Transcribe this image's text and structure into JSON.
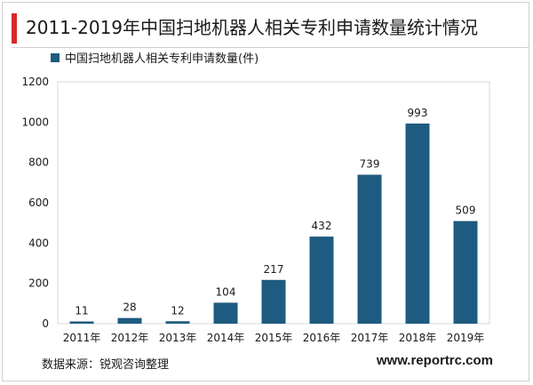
{
  "header": {
    "title": "2011-2019年中国扫地机器人相关专利申请数量统计情况"
  },
  "footer": {
    "source": "数据来源：锐观咨询整理",
    "website": "www.reportrc.com"
  },
  "colors": {
    "bar": "#1f5b80",
    "accent": "#d9272e",
    "axis_text": "#1a1a1a"
  },
  "chart_data": {
    "type": "bar",
    "categories": [
      "2011年",
      "2012年",
      "2013年",
      "2014年",
      "2015年",
      "2016年",
      "2017年",
      "2018年",
      "2019年"
    ],
    "series": [
      {
        "name": "中国扫地机器人相关专利申请数量(件)",
        "values": [
          11,
          28,
          12,
          104,
          217,
          432,
          739,
          993,
          509
        ]
      }
    ],
    "ylim": [
      0,
      1200
    ],
    "yticks": [
      0,
      200,
      400,
      600,
      800,
      1000,
      1200
    ],
    "grid": false,
    "legend_position": "top-left",
    "data_labels": true
  }
}
